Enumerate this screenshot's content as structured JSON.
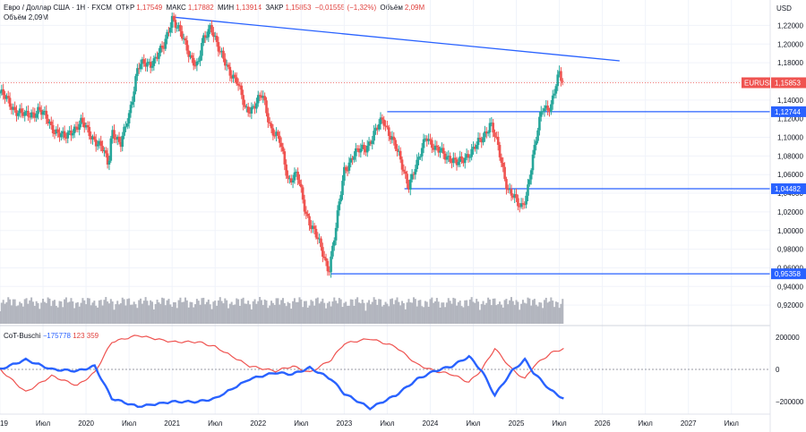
{
  "header": {
    "symbol": "Евро / Доллар США · 1Н · FXCM",
    "open_label": "ОТКР",
    "open": "1,17549",
    "high_label": "МАКС",
    "high": "1,17882",
    "low_label": "МИН",
    "low": "1,13914",
    "close_label": "ЗАКР",
    "close": "1,15853",
    "change": "−0,01555 (−1,32%)",
    "volume_label": "Объём",
    "volume": "2,09M",
    "volume_row": "Объём  2,09M"
  },
  "indicator": {
    "name": "CoT-Buschi",
    "blue_value": "−175778",
    "red_value": "123 359"
  },
  "currency": "USD",
  "colors": {
    "up": "#26a69a",
    "down": "#ef5350",
    "line": "#2962ff",
    "cot_red": "#ef5350",
    "volume": "#b2b5be"
  },
  "chart_data": [
    {
      "type": "candlestick",
      "title": "EURUSD weekly",
      "price_axis": [
        "1,22000",
        "1,20000",
        "1,18000",
        "1,16000",
        "1,14000",
        "1,12000",
        "1,10000",
        "1,08000",
        "1,06000",
        "1,04000",
        "1,02000",
        "1,00000",
        "0,98000",
        "0,96000",
        "0,94000",
        "0,92000"
      ],
      "ylim": [
        0.9,
        1.23
      ],
      "time_axis": [
        "2019",
        "Июл",
        "2020",
        "Июл",
        "2021",
        "Июл",
        "2022",
        "Июл",
        "2023",
        "Июл",
        "2024",
        "Июл",
        "2025",
        "Июл",
        "2026",
        "Июл",
        "2027",
        "Июл"
      ],
      "time_values": [
        2019.0,
        2019.5,
        2020.0,
        2020.5,
        2021.0,
        2021.5,
        2022.0,
        2022.5,
        2023.0,
        2023.5,
        2024.0,
        2024.5,
        2025.0,
        2025.5,
        2026.0,
        2026.5,
        2027.0,
        2027.5
      ],
      "xlim": [
        2019.0,
        2027.95
      ],
      "price_path": [
        [
          2019.0,
          1.148
        ],
        [
          2019.15,
          1.132
        ],
        [
          2019.3,
          1.122
        ],
        [
          2019.45,
          1.13
        ],
        [
          2019.6,
          1.112
        ],
        [
          2019.75,
          1.098
        ],
        [
          2019.85,
          1.11
        ],
        [
          2019.95,
          1.115
        ],
        [
          2020.1,
          1.098
        ],
        [
          2020.2,
          1.085
        ],
        [
          2020.26,
          1.07
        ],
        [
          2020.3,
          1.11
        ],
        [
          2020.4,
          1.09
        ],
        [
          2020.5,
          1.125
        ],
        [
          2020.6,
          1.175
        ],
        [
          2020.75,
          1.18
        ],
        [
          2020.9,
          1.195
        ],
        [
          2021.0,
          1.23
        ],
        [
          2021.1,
          1.21
        ],
        [
          2021.2,
          1.19
        ],
        [
          2021.3,
          1.175
        ],
        [
          2021.35,
          1.2
        ],
        [
          2021.45,
          1.222
        ],
        [
          2021.55,
          1.19
        ],
        [
          2021.65,
          1.175
        ],
        [
          2021.75,
          1.16
        ],
        [
          2021.85,
          1.13
        ],
        [
          2021.95,
          1.133
        ],
        [
          2022.05,
          1.145
        ],
        [
          2022.15,
          1.11
        ],
        [
          2022.25,
          1.095
        ],
        [
          2022.35,
          1.055
        ],
        [
          2022.45,
          1.06
        ],
        [
          2022.55,
          1.02
        ],
        [
          2022.65,
          1.0
        ],
        [
          2022.75,
          0.975
        ],
        [
          2022.82,
          0.958
        ],
        [
          2022.9,
          1.0
        ],
        [
          2023.0,
          1.065
        ],
        [
          2023.1,
          1.08
        ],
        [
          2023.25,
          1.09
        ],
        [
          2023.33,
          1.1
        ],
        [
          2023.45,
          1.12
        ],
        [
          2023.55,
          1.1
        ],
        [
          2023.65,
          1.075
        ],
        [
          2023.75,
          1.05
        ],
        [
          2023.85,
          1.07
        ],
        [
          2023.95,
          1.105
        ],
        [
          2024.05,
          1.085
        ],
        [
          2024.15,
          1.085
        ],
        [
          2024.3,
          1.07
        ],
        [
          2024.4,
          1.08
        ],
        [
          2024.5,
          1.085
        ],
        [
          2024.6,
          1.1
        ],
        [
          2024.7,
          1.115
        ],
        [
          2024.8,
          1.085
        ],
        [
          2024.9,
          1.045
        ],
        [
          2025.0,
          1.03
        ],
        [
          2025.05,
          1.025
        ],
        [
          2025.12,
          1.04
        ],
        [
          2025.2,
          1.08
        ],
        [
          2025.3,
          1.135
        ],
        [
          2025.4,
          1.13
        ],
        [
          2025.5,
          1.17
        ],
        [
          2025.55,
          1.16
        ]
      ],
      "current_price": 1.15853,
      "current_label": "EURUSD",
      "current_value": "1,15853",
      "levels": [
        {
          "value": 1.12744,
          "label": "1,12744",
          "from": 2023.5
        },
        {
          "value": 1.04482,
          "label": "1,04482",
          "from": 2023.7
        },
        {
          "value": 0.95358,
          "label": "0,95358",
          "from": 2022.85
        }
      ],
      "trendline": {
        "from": [
          2021.0,
          1.229
        ],
        "to": [
          2026.2,
          1.182
        ]
      }
    },
    {
      "type": "line",
      "title": "CoT-Buschi",
      "y_ticks": [
        "200000",
        "0",
        "−200000"
      ],
      "y_tick_values": [
        200000,
        0,
        -200000
      ],
      "ylim": [
        -260000,
        260000
      ],
      "series": [
        {
          "name": "blue",
          "points": [
            [
              2019.0,
              0
            ],
            [
              2019.3,
              60000
            ],
            [
              2019.6,
              0
            ],
            [
              2019.9,
              -10000
            ],
            [
              2020.1,
              20000
            ],
            [
              2020.3,
              -180000
            ],
            [
              2020.6,
              -230000
            ],
            [
              2021.0,
              -200000
            ],
            [
              2021.3,
              -200000
            ],
            [
              2021.5,
              -180000
            ],
            [
              2021.9,
              -60000
            ],
            [
              2022.2,
              -20000
            ],
            [
              2022.4,
              -30000
            ],
            [
              2022.6,
              10000
            ],
            [
              2022.85,
              -60000
            ],
            [
              2023.0,
              -150000
            ],
            [
              2023.3,
              -240000
            ],
            [
              2023.6,
              -160000
            ],
            [
              2023.85,
              -60000
            ],
            [
              2024.05,
              -10000
            ],
            [
              2024.25,
              20000
            ],
            [
              2024.45,
              80000
            ],
            [
              2024.6,
              -10000
            ],
            [
              2024.75,
              -160000
            ],
            [
              2024.95,
              -10000
            ],
            [
              2025.1,
              60000
            ],
            [
              2025.2,
              -20000
            ],
            [
              2025.4,
              -130000
            ],
            [
              2025.55,
              -180000
            ]
          ]
        },
        {
          "name": "red",
          "points": [
            [
              2019.0,
              0
            ],
            [
              2019.3,
              -140000
            ],
            [
              2019.6,
              -40000
            ],
            [
              2019.9,
              -100000
            ],
            [
              2020.1,
              -20000
            ],
            [
              2020.3,
              170000
            ],
            [
              2020.6,
              210000
            ],
            [
              2021.0,
              170000
            ],
            [
              2021.3,
              170000
            ],
            [
              2021.5,
              140000
            ],
            [
              2021.9,
              20000
            ],
            [
              2022.2,
              -10000
            ],
            [
              2022.4,
              20000
            ],
            [
              2022.6,
              -20000
            ],
            [
              2022.85,
              60000
            ],
            [
              2023.0,
              160000
            ],
            [
              2023.3,
              190000
            ],
            [
              2023.6,
              140000
            ],
            [
              2023.85,
              30000
            ],
            [
              2024.05,
              -10000
            ],
            [
              2024.25,
              -30000
            ],
            [
              2024.45,
              -80000
            ],
            [
              2024.6,
              0
            ],
            [
              2024.75,
              130000
            ],
            [
              2024.95,
              0
            ],
            [
              2025.1,
              -60000
            ],
            [
              2025.2,
              20000
            ],
            [
              2025.4,
              100000
            ],
            [
              2025.55,
              130000
            ]
          ]
        }
      ]
    }
  ]
}
